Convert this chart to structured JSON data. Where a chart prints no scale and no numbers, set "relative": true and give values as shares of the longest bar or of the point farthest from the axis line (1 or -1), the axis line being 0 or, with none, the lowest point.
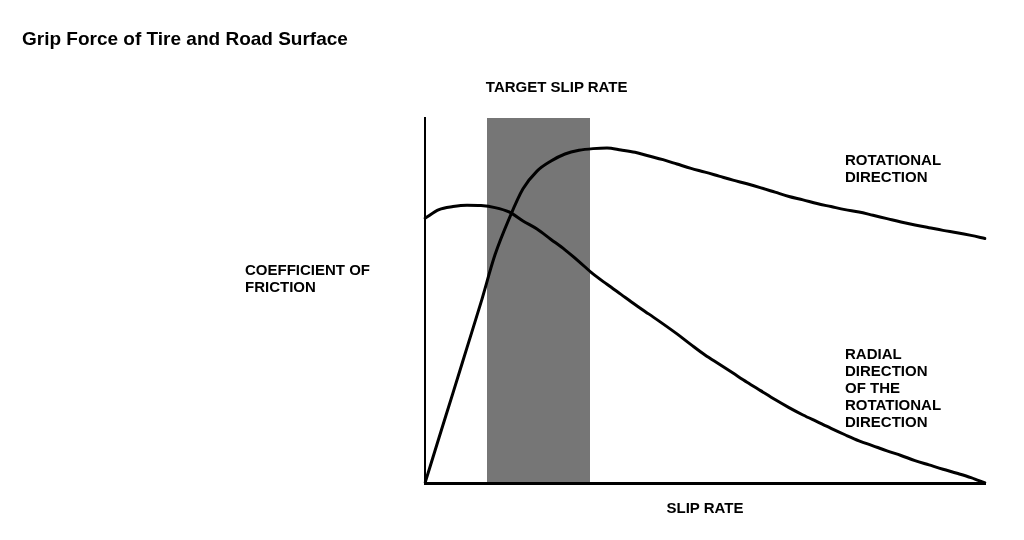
{
  "chart_data": {
    "type": "line",
    "title": "Grip Force of Tire and Road Surface",
    "xlabel": "SLIP RATE",
    "ylabel": "COEFFICIENT OF FRICTION",
    "relative": true,
    "categories": [
      null,
      null,
      null,
      null,
      null,
      null,
      null,
      null,
      null,
      null,
      null,
      null,
      null,
      null,
      null,
      null,
      null,
      null,
      null,
      null,
      null,
      null,
      null,
      null,
      null,
      null,
      null,
      null,
      null,
      null,
      null,
      null,
      null,
      null,
      null,
      null,
      null,
      null,
      null,
      null,
      null
    ],
    "series": [
      {
        "name": "ROTATIONAL DIRECTION",
        "color": "#000000",
        "values": [
          0,
          0.135,
          0.269,
          0.404,
          0.539,
          0.681,
          0.788,
          0.878,
          0.931,
          0.961,
          0.982,
          0.993,
          0.998,
          1,
          0.994,
          0.987,
          0.976,
          0.965,
          0.952,
          0.939,
          0.928,
          0.916,
          0.904,
          0.893,
          0.881,
          0.868,
          0.855,
          0.845,
          0.834,
          0.825,
          0.816,
          0.809,
          0.799,
          0.789,
          0.779,
          0.77,
          0.762,
          0.754,
          0.747,
          0.739,
          0.73
        ]
      },
      {
        "name": "RADIAL DIRECTION OF THE ROTATIONAL DIRECTION",
        "color": "#000000",
        "values": [
          0.79,
          0.816,
          0.825,
          0.829,
          0.828,
          0.822,
          0.809,
          0.782,
          0.758,
          0.727,
          0.696,
          0.661,
          0.624,
          0.593,
          0.563,
          0.533,
          0.504,
          0.475,
          0.445,
          0.413,
          0.382,
          0.355,
          0.328,
          0.301,
          0.275,
          0.249,
          0.225,
          0.203,
          0.183,
          0.163,
          0.144,
          0.126,
          0.111,
          0.096,
          0.082,
          0.067,
          0.054,
          0.041,
          0.029,
          0.016,
          0
        ]
      }
    ],
    "annotations": [
      "TARGET SLIP RATE"
    ]
  }
}
